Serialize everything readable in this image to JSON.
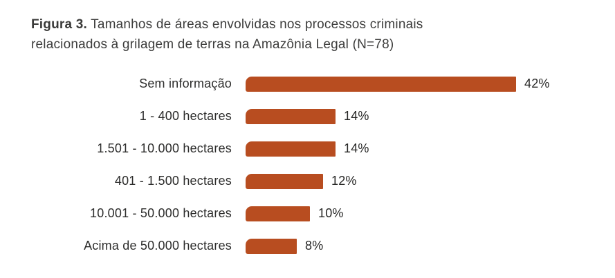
{
  "title": {
    "prefix": "Figura 3.",
    "line1": "Tamanhos de áreas envolvidas nos processos criminais",
    "line2": "relacionados à grilagem de terras na Amazônia Legal (N=78)"
  },
  "chart_data": {
    "type": "bar",
    "orientation": "horizontal",
    "title": "Figura 3. Tamanhos de áreas envolvidas nos processos criminais relacionados à grilagem de terras na Amazônia Legal (N=78)",
    "sample_size_note": "N=78",
    "categories": [
      "Sem informação",
      "1 - 400 hectares",
      "1.501 - 10.000 hectares",
      "401 - 1.500 hectares",
      "10.001 - 50.000 hectares",
      "Acima de 50.000 hectares"
    ],
    "values": [
      42,
      14,
      14,
      12,
      10,
      8
    ],
    "value_labels": [
      "42%",
      "14%",
      "14%",
      "12%",
      "10%",
      "8%"
    ],
    "unit": "%",
    "xlim": [
      0,
      45
    ],
    "grid": false,
    "legend": false,
    "bar_color": "#B84D20"
  },
  "colors": {
    "bar": "#B84D20",
    "title_text": "#3D3D3C",
    "label_text": "#2D2D2C",
    "background": "#FFFFFF"
  }
}
